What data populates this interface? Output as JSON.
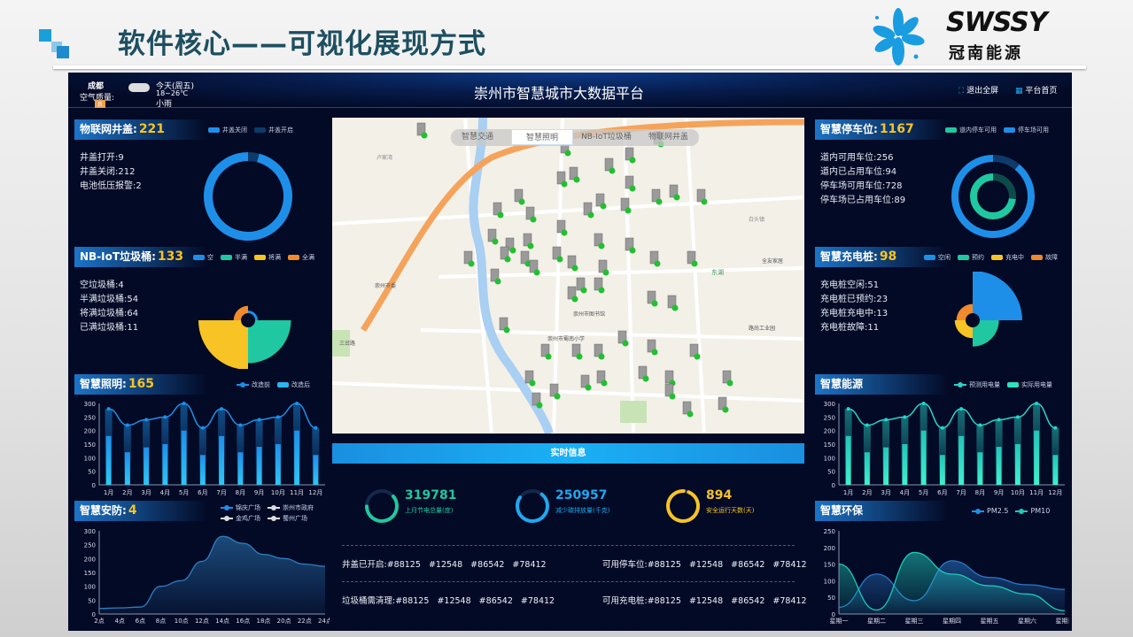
{
  "slide": {
    "title": "软件核心——可视化展现方式",
    "logo_text": "SWSSY",
    "logo_cn": "冠南能源"
  },
  "header": {
    "city": "成都",
    "air_label": "空气质量:",
    "air_badge": "良",
    "weather_day": "今天(周五)",
    "weather_temp": "18~26℃",
    "weather_desc": "小雨",
    "weather_icon": "rain-cloud-icon",
    "title": "崇州市智慧城市大数据平台",
    "exit_fullscreen": "退出全屏",
    "home": "平台首页"
  },
  "colors": {
    "blue": "#1e8fe8",
    "dark_blue": "#0e3b6a",
    "teal": "#1fc8a0",
    "yellow": "#f7c325",
    "orange": "#f08a2c",
    "panel_bg": "#030a26"
  },
  "well": {
    "title": "物联网井盖:",
    "count": "221",
    "legend": [
      "井盖关闭",
      "井盖开启"
    ],
    "stats": [
      "井盖打开:9",
      "井盖关闭:212",
      "电池低压报警:2"
    ],
    "open": 9,
    "closed": 212
  },
  "trash": {
    "title": "NB-IoT垃圾桶:",
    "count": "133",
    "legend": [
      "空",
      "半满",
      "将满",
      "全满"
    ],
    "stats": [
      "空垃圾桶:4",
      "半满垃圾桶:54",
      "将满垃圾桶:64",
      "已满垃圾桶:11"
    ],
    "values": [
      4,
      54,
      64,
      11
    ]
  },
  "parking": {
    "title": "智慧停车位:",
    "count": "1167",
    "legend": [
      "道内停车可用",
      "停车场可用"
    ],
    "stats": [
      "道内可用车位:256",
      "道内已占用车位:94",
      "停车场可用车位:728",
      "停车场已占用车位:89"
    ],
    "road_free": 256,
    "road_used": 94,
    "lot_free": 728,
    "lot_used": 89
  },
  "charging": {
    "title": "智慧充电桩:",
    "count": "98",
    "legend": [
      "空闲",
      "预约",
      "充电中",
      "故障"
    ],
    "stats": [
      "充电桩空闲:51",
      "充电桩已预约:23",
      "充电桩充电中:13",
      "充电桩故障:11"
    ],
    "values": [
      51,
      23,
      13,
      11
    ]
  },
  "lighting": {
    "title": "智慧照明:",
    "count": "165",
    "legend": [
      "改造前",
      "改造后"
    ]
  },
  "security": {
    "title": "智慧安防:",
    "count": "4",
    "legend": [
      "锦庆广场",
      "崇州市政府",
      "金鸡广场",
      "蜀州广场"
    ]
  },
  "energy": {
    "title": "智慧能源",
    "legend": [
      "预测用电量",
      "实际用电量"
    ]
  },
  "env": {
    "title": "智慧环保",
    "legend": [
      "PM2.5",
      "PM10"
    ]
  },
  "map": {
    "tabs": [
      "智慧交通",
      "智慧照明",
      "NB-IoT垃圾桶",
      "物联网井盖"
    ],
    "active_tab": 1,
    "labels": [
      "卢家湾",
      "崇州市图书馆",
      "崇州市蜀南小学",
      "路尚工业园",
      "全友家居",
      "东湖",
      "崇州市委",
      "白头镇",
      "三岔路"
    ]
  },
  "realtime": {
    "title": "实时信息",
    "kpis": [
      {
        "value": "319781",
        "label": "上月节电总量(度)",
        "color": "#1fc8a0",
        "fill": 0.7
      },
      {
        "value": "250957",
        "label": "减少碳排放量(千克)",
        "color": "#1ea8f0",
        "fill": 0.8
      },
      {
        "value": "894",
        "label": "安全运行天数(天)",
        "color": "#f7c325",
        "fill": 0.96
      }
    ],
    "rows": [
      {
        "label": "井盖已开启:",
        "ids": "#88125   #12548   #86542   #78412"
      },
      {
        "label": "可用停车位:",
        "ids": "#88125   #12548   #86542   #78412"
      },
      {
        "label": "垃圾桶需清理:",
        "ids": "#88125   #12548   #86542   #78412"
      },
      {
        "label": "可用充电桩:",
        "ids": "#88125   #12548   #86542   #78412"
      }
    ]
  },
  "chart_data": [
    {
      "type": "bar",
      "id": "lighting",
      "categories": [
        "1月",
        "2月",
        "3月",
        "4月",
        "5月",
        "6月",
        "7月",
        "8月",
        "9月",
        "10月",
        "11月",
        "12月"
      ],
      "ylim": [
        0,
        300
      ],
      "yticks": [
        0,
        50,
        100,
        150,
        200,
        250,
        300
      ],
      "series": [
        {
          "name": "改造前",
          "kind": "line",
          "values": [
            280,
            220,
            240,
            250,
            300,
            210,
            280,
            220,
            240,
            250,
            300,
            210
          ]
        },
        {
          "name": "改造后",
          "kind": "bar",
          "values": [
            180,
            120,
            138,
            150,
            200,
            110,
            180,
            120,
            140,
            150,
            200,
            110
          ]
        }
      ]
    },
    {
      "type": "area",
      "id": "security",
      "categories": [
        "2点",
        "4点",
        "6点",
        "8点",
        "10点",
        "12点",
        "14点",
        "16点",
        "18点",
        "20点",
        "22点",
        "24点"
      ],
      "ylim": [
        0,
        300
      ],
      "yticks": [
        0,
        50,
        100,
        150,
        200,
        250,
        300
      ],
      "series": [
        {
          "name": "锦庆广场",
          "values": [
            20,
            22,
            25,
            100,
            120,
            190,
            280,
            255,
            215,
            200,
            180,
            172
          ]
        }
      ]
    },
    {
      "type": "bar",
      "id": "energy",
      "categories": [
        "1月",
        "2月",
        "3月",
        "4月",
        "5月",
        "6月",
        "7月",
        "8月",
        "9月",
        "10月",
        "11月",
        "12月"
      ],
      "ylim": [
        0,
        300
      ],
      "yticks": [
        0,
        50,
        100,
        150,
        200,
        250,
        300
      ],
      "series": [
        {
          "name": "预测用电量",
          "kind": "line",
          "values": [
            280,
            220,
            240,
            250,
            300,
            210,
            280,
            220,
            240,
            250,
            300,
            210
          ]
        },
        {
          "name": "实际用电量",
          "kind": "bar",
          "values": [
            180,
            120,
            138,
            150,
            200,
            110,
            180,
            120,
            140,
            150,
            200,
            110
          ]
        }
      ]
    },
    {
      "type": "area",
      "id": "env",
      "categories": [
        "星期一",
        "星期二",
        "星期三",
        "星期四",
        "星期五",
        "星期六",
        "星期日"
      ],
      "ylim": [
        0,
        250
      ],
      "yticks": [
        0,
        50,
        100,
        150,
        200,
        250
      ],
      "series": [
        {
          "name": "PM2.5",
          "values": [
            20,
            120,
            40,
            160,
            110,
            88,
            74
          ]
        },
        {
          "name": "PM10",
          "values": [
            150,
            12,
            185,
            120,
            85,
            60,
            10
          ]
        }
      ]
    }
  ]
}
